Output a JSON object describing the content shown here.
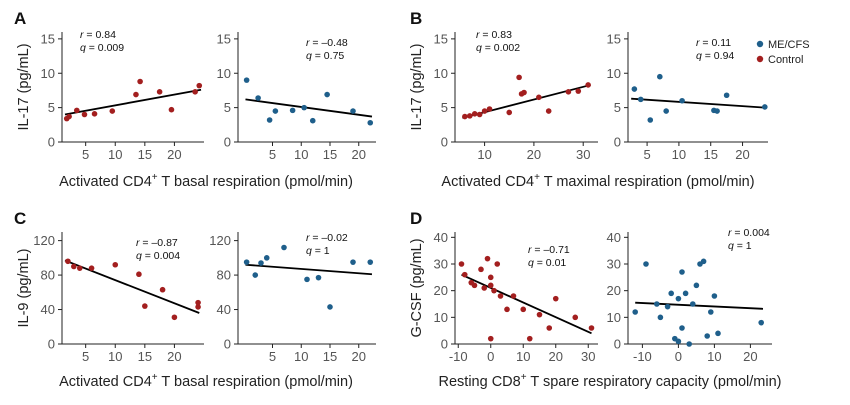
{
  "colors": {
    "me_cfs": "#1f5f8b",
    "control": "#a31f1f"
  },
  "legend": [
    {
      "label": "ME/CFS",
      "color": "#1f5f8b"
    },
    {
      "label": "Control",
      "color": "#a31f1f"
    }
  ],
  "chart_data": [
    {
      "id": "A-control",
      "letter": "A",
      "type": "scatter",
      "color": "#a31f1f",
      "ylabel": "IL-17 (pg/mL)",
      "xlim": [
        1,
        25
      ],
      "ylim": [
        0,
        16
      ],
      "xticks": [
        5,
        10,
        15,
        20
      ],
      "yticks": [
        0,
        5,
        10,
        15
      ],
      "stats": [
        "r = 0.84",
        "q = 0.009"
      ],
      "points": [
        [
          1.8,
          3.4
        ],
        [
          2.2,
          3.7
        ],
        [
          3.5,
          4.6
        ],
        [
          4.8,
          4.0
        ],
        [
          6.5,
          4.1
        ],
        [
          9.5,
          4.5
        ],
        [
          13.5,
          6.9
        ],
        [
          14.2,
          8.8
        ],
        [
          17.5,
          7.3
        ],
        [
          19.5,
          4.7
        ],
        [
          23.5,
          7.3
        ],
        [
          24.2,
          8.2
        ]
      ],
      "fit": [
        [
          1.5,
          4.0
        ],
        [
          24.5,
          7.6
        ]
      ]
    },
    {
      "id": "A-mecfs",
      "type": "scatter",
      "color": "#1f5f8b",
      "xlim": [
        -1,
        23
      ],
      "ylim": [
        0,
        16
      ],
      "xticks": [
        5,
        10,
        15,
        20
      ],
      "yticks": [
        0,
        5,
        10,
        15
      ],
      "stats": [
        "r = –0.48",
        "q = 0.75"
      ],
      "points": [
        [
          0.5,
          9.0
        ],
        [
          2.5,
          6.4
        ],
        [
          4.5,
          3.2
        ],
        [
          5.5,
          4.5
        ],
        [
          8.5,
          4.6
        ],
        [
          10.5,
          5.0
        ],
        [
          12.0,
          3.1
        ],
        [
          14.5,
          6.9
        ],
        [
          19.0,
          4.5
        ],
        [
          22.0,
          2.8
        ]
      ],
      "fit": [
        [
          0.3,
          6.2
        ],
        [
          22.3,
          3.7
        ]
      ]
    },
    {
      "id": "B-control",
      "letter": "B",
      "type": "scatter",
      "color": "#a31f1f",
      "ylabel": "IL-17 (pg/mL)",
      "xlim": [
        4,
        33
      ],
      "ylim": [
        0,
        16
      ],
      "xticks": [
        10,
        20,
        30
      ],
      "yticks": [
        0,
        5,
        10,
        15
      ],
      "stats": [
        "r = 0.83",
        "q = 0.002"
      ],
      "points": [
        [
          6,
          3.7
        ],
        [
          7,
          3.8
        ],
        [
          8,
          4.1
        ],
        [
          9,
          4.0
        ],
        [
          10,
          4.5
        ],
        [
          11,
          4.8
        ],
        [
          15,
          4.3
        ],
        [
          17,
          9.4
        ],
        [
          17.5,
          7.0
        ],
        [
          18,
          7.2
        ],
        [
          21,
          6.5
        ],
        [
          23,
          4.5
        ],
        [
          27,
          7.3
        ],
        [
          29,
          7.4
        ],
        [
          31,
          8.3
        ]
      ],
      "fit": [
        [
          5.5,
          3.5
        ],
        [
          31.5,
          8.3
        ]
      ]
    },
    {
      "id": "B-mecfs",
      "type": "scatter",
      "color": "#1f5f8b",
      "xlim": [
        2,
        24
      ],
      "ylim": [
        0,
        16
      ],
      "xticks": [
        5,
        10,
        15,
        20
      ],
      "yticks": [
        0,
        5,
        10,
        15
      ],
      "stats": [
        "r = 0.11",
        "q = 0.94"
      ],
      "points": [
        [
          3,
          7.7
        ],
        [
          4,
          6.2
        ],
        [
          5.5,
          3.2
        ],
        [
          7,
          9.5
        ],
        [
          8,
          4.5
        ],
        [
          10.5,
          6.0
        ],
        [
          15.5,
          4.6
        ],
        [
          16,
          4.5
        ],
        [
          17.5,
          6.8
        ],
        [
          23.5,
          5.1
        ]
      ],
      "fit": [
        [
          2.5,
          6.3
        ],
        [
          23.5,
          5.0
        ]
      ]
    },
    {
      "id": "C-control",
      "letter": "C",
      "type": "scatter",
      "color": "#a31f1f",
      "ylabel": "IL-9 (pg/mL)",
      "xlim": [
        1,
        25
      ],
      "ylim": [
        0,
        130
      ],
      "xticks": [
        5,
        10,
        15,
        20
      ],
      "yticks": [
        0,
        40,
        80,
        120
      ],
      "stats": [
        "r = –0.87",
        "q = 0.004"
      ],
      "points": [
        [
          2,
          96
        ],
        [
          3,
          90
        ],
        [
          4,
          88
        ],
        [
          6,
          88
        ],
        [
          10,
          92
        ],
        [
          14,
          81
        ],
        [
          15,
          44
        ],
        [
          18,
          63
        ],
        [
          20,
          31
        ],
        [
          24,
          43
        ],
        [
          24,
          48
        ]
      ],
      "fit": [
        [
          1.5,
          97
        ],
        [
          24.2,
          36
        ]
      ]
    },
    {
      "id": "C-mecfs",
      "type": "scatter",
      "color": "#1f5f8b",
      "xlim": [
        -1,
        23
      ],
      "ylim": [
        0,
        130
      ],
      "xticks": [
        5,
        10,
        15,
        20
      ],
      "yticks": [
        0,
        40,
        80,
        120
      ],
      "stats": [
        "r = –0.02",
        "q = 1"
      ],
      "points": [
        [
          0.5,
          95
        ],
        [
          2,
          80
        ],
        [
          3,
          94
        ],
        [
          4,
          100
        ],
        [
          7,
          112
        ],
        [
          11,
          75
        ],
        [
          13,
          77
        ],
        [
          15,
          43
        ],
        [
          19,
          95
        ],
        [
          22,
          95
        ]
      ],
      "fit": [
        [
          0.3,
          92
        ],
        [
          22.3,
          81
        ]
      ]
    },
    {
      "id": "D-control",
      "letter": "D",
      "type": "scatter",
      "color": "#a31f1f",
      "ylabel": "G-CSF (pg/mL)",
      "xlim": [
        -11,
        33
      ],
      "ylim": [
        0,
        42
      ],
      "xticks": [
        -10,
        0,
        10,
        20,
        30
      ],
      "yticks": [
        0,
        10,
        20,
        30,
        40
      ],
      "stats": [
        "r = –0.71",
        "q = 0.01"
      ],
      "points": [
        [
          -9,
          30
        ],
        [
          -8,
          26
        ],
        [
          -6,
          23
        ],
        [
          -5,
          22
        ],
        [
          -3,
          28
        ],
        [
          -2,
          21
        ],
        [
          -1,
          32
        ],
        [
          0,
          25
        ],
        [
          1,
          20
        ],
        [
          2,
          30
        ],
        [
          0,
          22
        ],
        [
          3,
          18
        ],
        [
          5,
          13
        ],
        [
          7,
          18
        ],
        [
          10,
          13
        ],
        [
          12,
          2
        ],
        [
          15,
          11
        ],
        [
          18,
          6
        ],
        [
          20,
          17
        ],
        [
          26,
          10
        ],
        [
          31,
          6
        ],
        [
          0,
          2
        ]
      ],
      "fit": [
        [
          -9,
          26
        ],
        [
          31,
          4
        ]
      ]
    },
    {
      "id": "D-mecfs",
      "type": "scatter",
      "color": "#1f5f8b",
      "xlim": [
        -14,
        26
      ],
      "ylim": [
        0,
        42
      ],
      "xticks": [
        -10,
        0,
        10,
        20
      ],
      "yticks": [
        0,
        10,
        20,
        30,
        40
      ],
      "stats": [
        "r = 0.004",
        "q = 1"
      ],
      "points": [
        [
          -12,
          12
        ],
        [
          -9,
          30
        ],
        [
          -6,
          15
        ],
        [
          -5,
          10
        ],
        [
          -3,
          14
        ],
        [
          -2,
          19
        ],
        [
          -1,
          2
        ],
        [
          0,
          1
        ],
        [
          0,
          17
        ],
        [
          1,
          27
        ],
        [
          1,
          6
        ],
        [
          2,
          19
        ],
        [
          3,
          0
        ],
        [
          4,
          15
        ],
        [
          5,
          22
        ],
        [
          6,
          30
        ],
        [
          7,
          31
        ],
        [
          8,
          3
        ],
        [
          9,
          12
        ],
        [
          10,
          18
        ],
        [
          11,
          4
        ],
        [
          23,
          8
        ]
      ],
      "fit": [
        [
          -12,
          15.5
        ],
        [
          23.5,
          13.2
        ]
      ]
    }
  ],
  "xlabels": {
    "A": {
      "pre": "Activated CD4",
      "sup": "+",
      "post": " T basal respiration (pmol/min)"
    },
    "B": {
      "pre": "Activated CD4",
      "sup": "+",
      "post": " T maximal respiration (pmol/min)"
    },
    "C": {
      "pre": "Activated CD4",
      "sup": "+",
      "post": " T basal respiration (pmol/min)"
    },
    "D": {
      "pre": "Resting CD8",
      "sup": "+",
      "post": " T spare respiratory capacity (pmol/min)"
    }
  }
}
